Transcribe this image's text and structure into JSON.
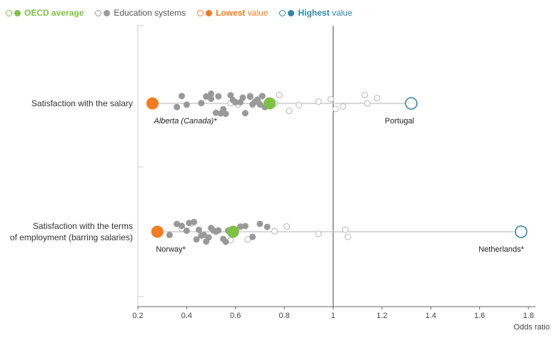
{
  "colors": {
    "oecd_average": "#7dc242",
    "education_systems": "#999999",
    "lowest": "#f47b20",
    "highest": "#2e86ab",
    "axis": "#666666",
    "gridline": "#cccccc"
  },
  "legend": [
    {
      "hollow_color": "#7dc242",
      "filled_color": "#7dc242",
      "pre": "",
      "bold": "OECD average",
      "post": "",
      "text_color": "#7dc242"
    },
    {
      "hollow_color": "#999999",
      "filled_color": "#999999",
      "pre": "Education systems",
      "bold": "",
      "post": "",
      "text_color": "#555555"
    },
    {
      "hollow_color": "#f47b20",
      "filled_color": "#f47b20",
      "pre": "",
      "bold": "Lowest",
      "post": " value",
      "text_color": "#f47b20"
    },
    {
      "hollow_color": "#2e86ab",
      "filled_color": "#2e86ab",
      "pre": "",
      "bold": "Highest",
      "post": " value",
      "text_color": "#2e86ab"
    }
  ],
  "chart_data": {
    "type": "scatter",
    "xlabel": "Odds ratio",
    "xlim": [
      0.2,
      1.8
    ],
    "xticks": [
      "0.2",
      "0.4",
      "0.6",
      "0.8",
      "1",
      "1.2",
      "1.4",
      "1.6",
      "1.8"
    ],
    "reference_line": 1,
    "categories": [
      {
        "label": [
          "Satisfaction with the salary"
        ],
        "oecd_average": 0.74,
        "lowest": {
          "value": 0.26,
          "label": "Alberta (Canada)*"
        },
        "highest": {
          "value": 1.32,
          "label": "Portugal"
        },
        "significant": [
          0.36,
          0.38,
          0.4,
          0.46,
          0.48,
          0.5,
          0.52,
          0.54,
          0.58,
          0.62,
          0.64,
          0.66,
          0.68,
          0.7,
          0.72,
          0.5,
          0.53,
          0.56,
          0.6,
          0.63,
          0.67,
          0.69,
          0.71,
          0.55,
          0.59
        ],
        "not_significant": [
          0.58,
          0.61,
          0.66,
          0.7,
          0.74,
          0.76,
          0.78,
          0.82,
          0.86,
          0.94,
          0.99,
          1.01,
          1.04,
          1.13,
          1.14,
          1.18
        ]
      },
      {
        "label": [
          "Satisfaction with the terms",
          "of employment (barring salaries)"
        ],
        "oecd_average": 0.59,
        "lowest": {
          "value": 0.28,
          "label": "Norway*"
        },
        "highest": {
          "value": 1.77,
          "label": "Netherlands*"
        },
        "significant": [
          0.33,
          0.36,
          0.38,
          0.4,
          0.41,
          0.43,
          0.45,
          0.46,
          0.47,
          0.48,
          0.5,
          0.51,
          0.52,
          0.53,
          0.55,
          0.57,
          0.6,
          0.62,
          0.64,
          0.67,
          0.7,
          0.73,
          0.49,
          0.44,
          0.56
        ],
        "not_significant": [
          0.38,
          0.42,
          0.58,
          0.62,
          0.65,
          0.76,
          0.81,
          0.94,
          1.05,
          1.06
        ]
      }
    ]
  }
}
